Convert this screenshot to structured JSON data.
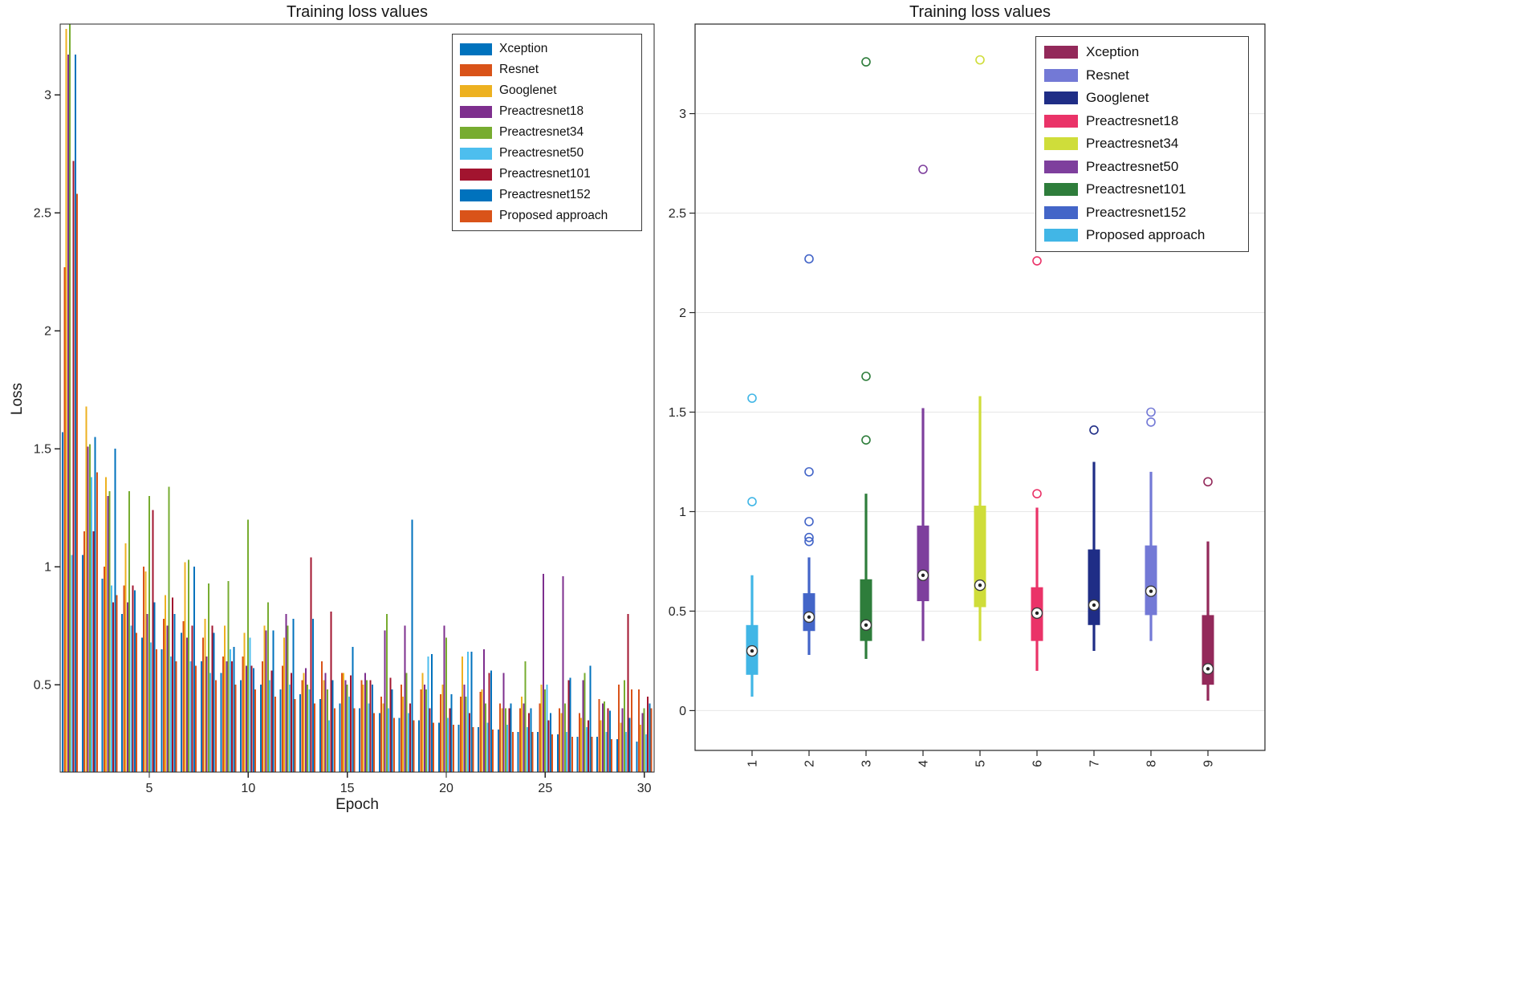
{
  "page": {
    "background": "#ffffff",
    "axis_color": "#262626",
    "grid_color": "#e7e7e7"
  },
  "chart_data": [
    {
      "type": "bar",
      "title": "Training loss values",
      "xlabel": "Epoch",
      "ylabel": "Loss",
      "x": [
        1,
        2,
        3,
        4,
        5,
        6,
        7,
        8,
        9,
        10,
        11,
        12,
        13,
        14,
        15,
        16,
        17,
        18,
        19,
        20,
        21,
        22,
        23,
        24,
        25,
        26,
        27,
        28,
        29,
        30
      ],
      "x_ticks": [
        5,
        10,
        15,
        20,
        25,
        30
      ],
      "y_ticks": [
        0.5,
        1,
        1.5,
        2,
        2.5,
        3
      ],
      "ylim": [
        0.13,
        3.3
      ],
      "legend_position": "top-right",
      "series": [
        {
          "name": "Xception",
          "color": "#0072BD",
          "values": [
            1.57,
            1.05,
            0.95,
            0.8,
            0.7,
            0.65,
            0.72,
            0.6,
            0.55,
            0.52,
            0.5,
            0.48,
            0.46,
            0.44,
            0.42,
            0.4,
            0.38,
            0.36,
            0.35,
            0.34,
            0.33,
            0.32,
            0.31,
            0.3,
            0.3,
            0.29,
            0.28,
            0.28,
            0.27,
            0.26
          ]
        },
        {
          "name": "Resnet",
          "color": "#D95319",
          "values": [
            2.27,
            1.15,
            1.0,
            0.92,
            1.0,
            0.78,
            0.77,
            0.7,
            0.62,
            0.62,
            0.6,
            0.58,
            0.52,
            0.6,
            0.55,
            0.52,
            0.45,
            0.5,
            0.48,
            0.46,
            0.45,
            0.47,
            0.42,
            0.4,
            0.42,
            0.4,
            0.38,
            0.44,
            0.5,
            0.48
          ]
        },
        {
          "name": "Googlenet",
          "color": "#EDB120",
          "values": [
            3.28,
            1.68,
            1.38,
            1.1,
            0.98,
            0.88,
            1.02,
            0.78,
            0.75,
            0.72,
            0.75,
            0.7,
            0.55,
            0.52,
            0.55,
            0.5,
            0.42,
            0.45,
            0.55,
            0.5,
            0.62,
            0.48,
            0.4,
            0.45,
            0.5,
            0.38,
            0.36,
            0.35,
            0.34,
            0.33
          ]
        },
        {
          "name": "Preactresnet18",
          "color": "#7E2F8E",
          "values": [
            3.17,
            1.51,
            1.3,
            0.85,
            0.8,
            0.75,
            0.7,
            0.62,
            0.6,
            0.58,
            0.73,
            0.8,
            0.57,
            0.55,
            0.52,
            0.55,
            0.73,
            0.75,
            0.5,
            0.75,
            0.5,
            0.65,
            0.55,
            0.42,
            0.97,
            0.96,
            0.52,
            0.42,
            0.4,
            0.38
          ]
        },
        {
          "name": "Preactresnet34",
          "color": "#77AC30",
          "values": [
            3.3,
            1.52,
            1.32,
            1.32,
            1.3,
            1.34,
            1.03,
            0.93,
            0.94,
            1.2,
            0.85,
            0.75,
            0.5,
            0.48,
            0.5,
            0.52,
            0.8,
            0.55,
            0.48,
            0.7,
            0.45,
            0.42,
            0.4,
            0.6,
            0.48,
            0.42,
            0.55,
            0.43,
            0.52,
            0.4
          ]
        },
        {
          "name": "Preactresnet50",
          "color": "#4DBEEE",
          "values": [
            1.05,
            1.38,
            0.92,
            0.75,
            0.68,
            0.62,
            0.6,
            0.55,
            0.65,
            0.7,
            0.52,
            0.5,
            0.48,
            0.35,
            0.45,
            0.42,
            0.4,
            0.38,
            0.62,
            0.36,
            0.64,
            0.34,
            0.33,
            0.32,
            0.5,
            0.3,
            0.32,
            0.3,
            0.3,
            0.29
          ]
        },
        {
          "name": "Preactresnet101",
          "color": "#A2142F",
          "values": [
            2.72,
            1.15,
            0.85,
            0.92,
            1.24,
            0.87,
            0.75,
            0.75,
            0.6,
            0.58,
            0.56,
            0.55,
            1.04,
            0.81,
            0.54,
            0.52,
            0.53,
            0.42,
            0.4,
            0.4,
            0.38,
            0.55,
            0.4,
            0.38,
            0.35,
            0.52,
            0.35,
            0.4,
            0.8,
            0.45
          ]
        },
        {
          "name": "Preactresnet152",
          "color": "#0072BD",
          "values": [
            3.17,
            1.55,
            1.5,
            0.9,
            0.85,
            0.8,
            1.0,
            0.72,
            0.66,
            0.57,
            0.73,
            0.78,
            0.78,
            0.52,
            0.66,
            0.5,
            0.48,
            1.2,
            0.63,
            0.46,
            0.64,
            0.56,
            0.42,
            0.4,
            0.38,
            0.53,
            0.58,
            0.39,
            0.36,
            0.42
          ]
        },
        {
          "name": "Proposed approach",
          "color": "#D95319",
          "values": [
            2.58,
            1.4,
            0.88,
            0.72,
            0.65,
            0.6,
            0.58,
            0.52,
            0.5,
            0.48,
            0.45,
            0.44,
            0.42,
            0.4,
            0.4,
            0.38,
            0.36,
            0.35,
            0.34,
            0.33,
            0.32,
            0.31,
            0.3,
            0.3,
            0.29,
            0.28,
            0.28,
            0.27,
            0.48,
            0.4
          ]
        }
      ]
    },
    {
      "type": "boxplot",
      "title": "Training loss values",
      "xlabel": "",
      "ylabel": "",
      "categories": [
        "1",
        "2",
        "3",
        "4",
        "5",
        "6",
        "7",
        "8",
        "9"
      ],
      "y_ticks": [
        0,
        0.5,
        1,
        1.5,
        2,
        2.5,
        3
      ],
      "ylim": [
        -0.2,
        3.45
      ],
      "grid": "horizontal",
      "legend_position": "top-right",
      "legend": [
        {
          "name": "Xception",
          "color": "#93295a"
        },
        {
          "name": "Resnet",
          "color": "#7379d6"
        },
        {
          "name": "Googlenet",
          "color": "#1f2d86"
        },
        {
          "name": "Preactresnet18",
          "color": "#ea3368"
        },
        {
          "name": "Preactresnet34",
          "color": "#cfdd3a"
        },
        {
          "name": "Preactresnet50",
          "color": "#7e3f9d"
        },
        {
          "name": "Preactresnet101",
          "color": "#2e7d3b"
        },
        {
          "name": "Preactresnet152",
          "color": "#4365c8"
        },
        {
          "name": "Proposed approach",
          "color": "#41b6e6"
        }
      ],
      "boxes": [
        {
          "category": "1",
          "color": "#41b6e6",
          "whisker_low": 0.07,
          "q1": 0.18,
          "median": 0.3,
          "q3": 0.43,
          "whisker_high": 0.68,
          "outliers": [
            1.05,
            1.57
          ]
        },
        {
          "category": "2",
          "color": "#4365c8",
          "whisker_low": 0.28,
          "q1": 0.4,
          "median": 0.47,
          "q3": 0.59,
          "whisker_high": 0.77,
          "outliers": [
            0.85,
            0.87,
            0.95,
            1.2,
            2.27
          ]
        },
        {
          "category": "3",
          "color": "#2e7d3b",
          "whisker_low": 0.26,
          "q1": 0.35,
          "median": 0.43,
          "q3": 0.66,
          "whisker_high": 1.09,
          "outliers": [
            1.36,
            1.68,
            3.26
          ]
        },
        {
          "category": "4",
          "color": "#7e3f9d",
          "whisker_low": 0.35,
          "q1": 0.55,
          "median": 0.68,
          "q3": 0.93,
          "whisker_high": 1.52,
          "outliers": [
            2.72
          ]
        },
        {
          "category": "5",
          "color": "#cfdd3a",
          "whisker_low": 0.35,
          "q1": 0.52,
          "median": 0.63,
          "q3": 1.03,
          "whisker_high": 1.58,
          "outliers": [
            3.27
          ]
        },
        {
          "category": "6",
          "color": "#ea3368",
          "whisker_low": 0.2,
          "q1": 0.35,
          "median": 0.49,
          "q3": 0.62,
          "whisker_high": 1.02,
          "outliers": [
            1.09,
            2.26
          ]
        },
        {
          "category": "7",
          "color": "#1f2d86",
          "whisker_low": 0.3,
          "q1": 0.43,
          "median": 0.53,
          "q3": 0.81,
          "whisker_high": 1.25,
          "outliers": [
            1.41
          ]
        },
        {
          "category": "8",
          "color": "#7379d6",
          "whisker_low": 0.35,
          "q1": 0.48,
          "median": 0.6,
          "q3": 0.83,
          "whisker_high": 1.2,
          "outliers": [
            1.45,
            1.5
          ]
        },
        {
          "category": "9",
          "color": "#93295a",
          "whisker_low": 0.05,
          "q1": 0.13,
          "median": 0.21,
          "q3": 0.48,
          "whisker_high": 0.85,
          "outliers": [
            1.15
          ]
        }
      ]
    }
  ]
}
